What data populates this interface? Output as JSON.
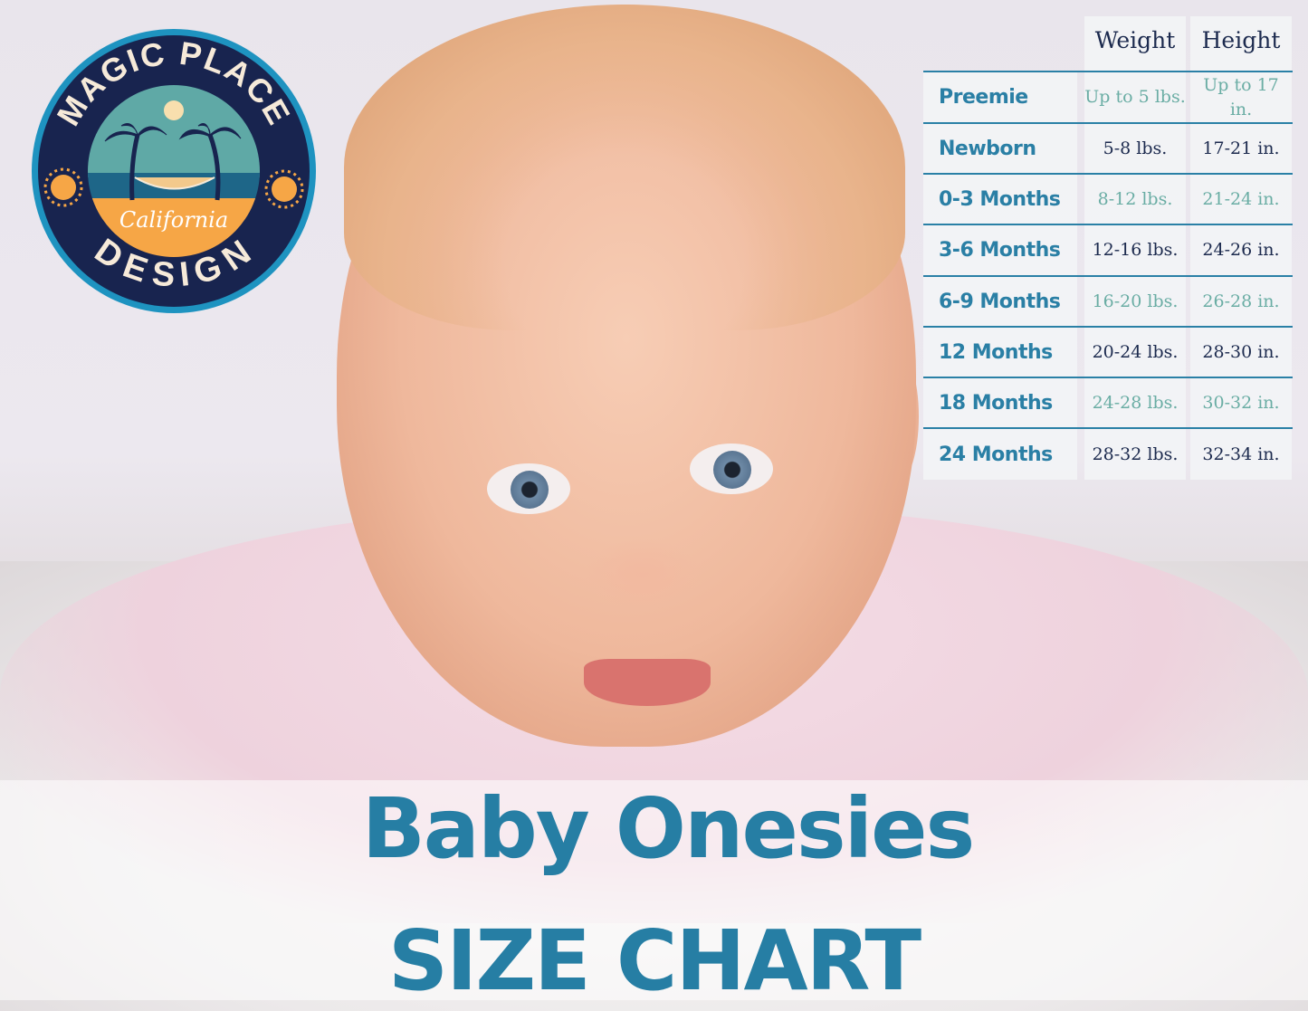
{
  "logo": {
    "top_text": "MAGIC PLACE",
    "bottom_text": "DESIGN",
    "script_text": "California",
    "colors": {
      "ring": "#1e93c0",
      "navy": "#18244f",
      "sea": "#5fa9a6",
      "sand": "#f6a646",
      "cream": "#f6ead9"
    }
  },
  "size_chart": {
    "headers": [
      "Weight",
      "Height"
    ],
    "rows": [
      {
        "size": "Preemie",
        "weight": "Up to 5 lbs.",
        "height": "Up to 17 in.",
        "tone": "teal"
      },
      {
        "size": "Newborn",
        "weight": "5-8 lbs.",
        "height": "17-21 in.",
        "tone": "dark"
      },
      {
        "size": "0-3 Months",
        "weight": "8-12 lbs.",
        "height": "21-24 in.",
        "tone": "teal"
      },
      {
        "size": "3-6 Months",
        "weight": "12-16 lbs.",
        "height": "24-26 in.",
        "tone": "dark"
      },
      {
        "size": "6-9 Months",
        "weight": "16-20 lbs.",
        "height": "26-28 in.",
        "tone": "teal"
      },
      {
        "size": "12 Months",
        "weight": "20-24 lbs.",
        "height": "28-30 in.",
        "tone": "dark"
      },
      {
        "size": "18 Months",
        "weight": "24-28 lbs.",
        "height": "30-32 in.",
        "tone": "teal"
      },
      {
        "size": "24 Months",
        "weight": "28-32 lbs.",
        "height": "32-34 in.",
        "tone": "dark"
      }
    ]
  },
  "banner": {
    "title_line1": "Baby Onesies",
    "title_line2": "SIZE CHART",
    "color": "#267ea4"
  }
}
